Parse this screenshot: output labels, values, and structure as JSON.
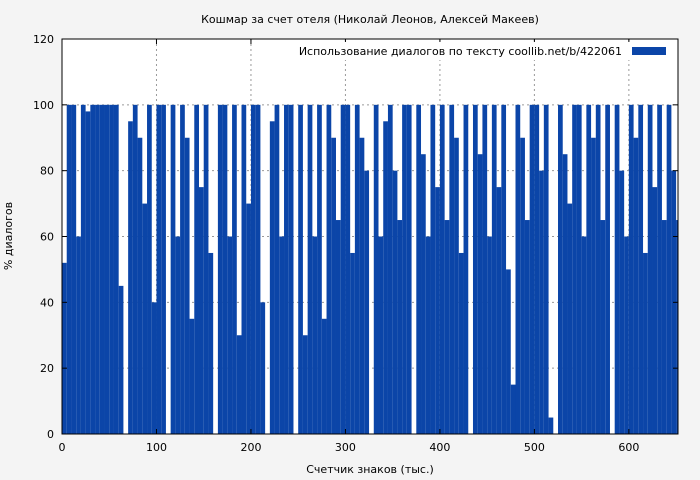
{
  "chart_data": {
    "type": "area",
    "title": "Кошмар за счет отеля (Николай Леонов, Алексей Макеев)",
    "xlabel": "Счетчик знаков (тыс.)",
    "ylabel": "% диалогов",
    "xlim": [
      0,
      652
    ],
    "ylim": [
      0,
      120
    ],
    "x_ticks": [
      0,
      100,
      200,
      300,
      400,
      500,
      600
    ],
    "y_ticks": [
      0,
      20,
      40,
      60,
      80,
      100,
      120
    ],
    "grid": true,
    "legend_position": "top-right",
    "series": [
      {
        "name": "Использование диалогов по тексту  coollib.net/b/422061",
        "color": "#0b45a8",
        "x": [
          0,
          5,
          10,
          15,
          20,
          25,
          30,
          35,
          40,
          45,
          50,
          55,
          60,
          65,
          70,
          75,
          80,
          85,
          90,
          95,
          100,
          105,
          110,
          115,
          120,
          125,
          130,
          135,
          140,
          145,
          150,
          155,
          160,
          165,
          170,
          175,
          180,
          185,
          190,
          195,
          200,
          205,
          210,
          215,
          220,
          225,
          230,
          235,
          240,
          245,
          250,
          255,
          260,
          265,
          270,
          275,
          280,
          285,
          290,
          295,
          300,
          305,
          310,
          315,
          320,
          325,
          330,
          335,
          340,
          345,
          350,
          355,
          360,
          365,
          370,
          375,
          380,
          385,
          390,
          395,
          400,
          405,
          410,
          415,
          420,
          425,
          430,
          435,
          440,
          445,
          450,
          455,
          460,
          465,
          470,
          475,
          480,
          485,
          490,
          495,
          500,
          505,
          510,
          515,
          520,
          525,
          530,
          535,
          540,
          545,
          550,
          555,
          560,
          565,
          570,
          575,
          580,
          585,
          590,
          595,
          600,
          605,
          610,
          615,
          620,
          625,
          630,
          635,
          640,
          645,
          650
        ],
        "values": [
          52,
          100,
          100,
          60,
          100,
          98,
          100,
          100,
          100,
          100,
          100,
          100,
          45,
          0,
          95,
          100,
          90,
          70,
          100,
          40,
          100,
          100,
          0,
          100,
          60,
          100,
          90,
          35,
          100,
          75,
          100,
          55,
          0,
          100,
          100,
          60,
          100,
          30,
          100,
          70,
          100,
          100,
          40,
          0,
          95,
          100,
          60,
          100,
          100,
          0,
          100,
          30,
          100,
          60,
          100,
          35,
          100,
          90,
          65,
          100,
          100,
          55,
          100,
          90,
          80,
          0,
          100,
          60,
          95,
          100,
          80,
          65,
          100,
          100,
          0,
          100,
          85,
          60,
          100,
          75,
          100,
          65,
          100,
          90,
          55,
          100,
          0,
          100,
          85,
          100,
          60,
          100,
          75,
          100,
          50,
          15,
          100,
          90,
          65,
          100,
          100,
          80,
          100,
          5,
          0,
          100,
          85,
          70,
          100,
          100,
          60,
          100,
          90,
          100,
          65,
          100,
          0,
          100,
          80,
          60,
          100,
          90,
          100,
          55,
          100,
          75,
          100,
          65,
          100,
          80,
          65
        ]
      }
    ]
  }
}
